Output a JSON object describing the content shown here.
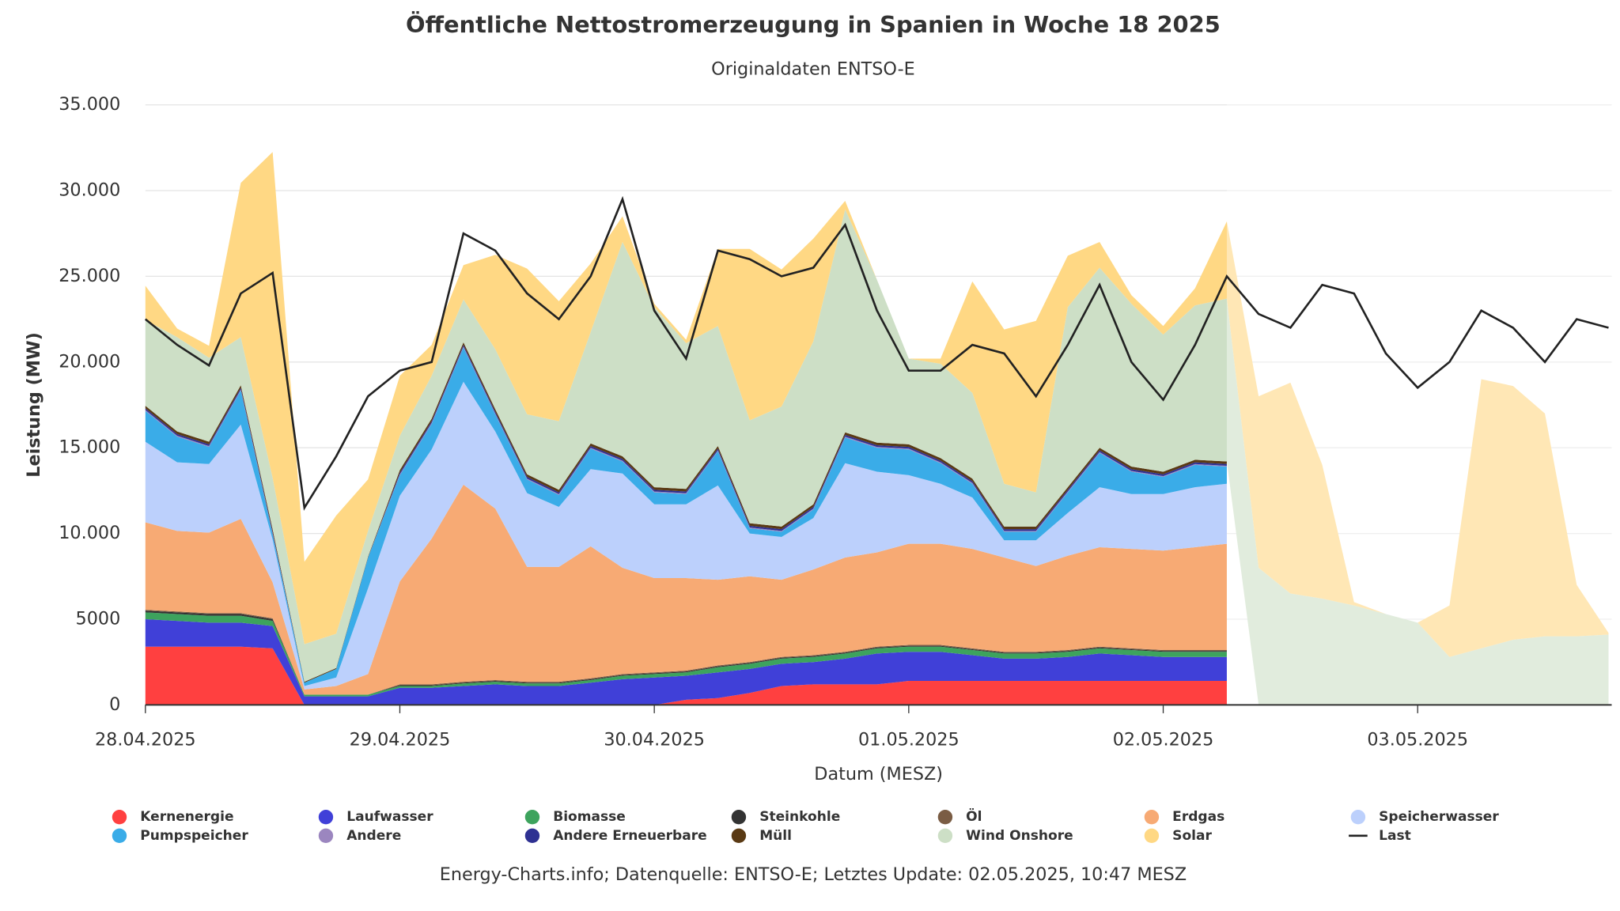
{
  "chart_data": {
    "type": "area",
    "title": "Öffentliche Nettostromerzeugung in Spanien in Woche 18 2025",
    "subtitle": "Originaldaten ENTSO-E",
    "y_label": "Leistung (MW)",
    "x_label": "Datum (MESZ)",
    "caption": "Energy-Charts.info; Datenquelle: ENTSO-E; Letztes Update: 02.05.2025, 10:47 MESZ",
    "grid": true,
    "xlim": [
      0,
      138.3
    ],
    "xticks": [
      {
        "value": 0,
        "label": "28.04.2025"
      },
      {
        "value": 24,
        "label": "29.04.2025"
      },
      {
        "value": 48,
        "label": "30.04.2025"
      },
      {
        "value": 72,
        "label": "01.05.2025"
      },
      {
        "value": 96,
        "label": "02.05.2025"
      },
      {
        "value": 120,
        "label": "03.05.2025"
      }
    ],
    "ylim": [
      0,
      35000
    ],
    "yticks": [
      0,
      5000,
      {
        "value": 10000,
        "label": "10.000"
      },
      {
        "value": 15000,
        "label": "15.000"
      },
      {
        "value": 20000,
        "label": "20.000"
      },
      {
        "value": 25000,
        "label": "25.000"
      },
      {
        "value": 30000,
        "label": "30.000"
      },
      {
        "value": 35000,
        "label": "35.000"
      }
    ],
    "x": [
      0,
      3,
      6,
      9,
      12,
      15,
      18,
      21,
      24,
      27,
      30,
      33,
      36,
      39,
      42,
      45,
      48,
      51,
      54,
      57,
      60,
      63,
      66,
      69,
      72,
      75,
      78,
      81,
      84,
      87,
      90,
      93,
      96,
      99,
      102,
      105,
      108,
      111,
      114,
      117,
      120,
      123,
      126,
      129,
      132,
      135,
      138
    ],
    "series": [
      {
        "name": "Kernenergie",
        "color": "#ff4040",
        "values": [
          3400,
          3400,
          3400,
          3400,
          3300,
          0,
          0,
          0,
          0,
          0,
          0,
          0,
          0,
          0,
          0,
          0,
          0,
          300,
          400,
          700,
          1100,
          1200,
          1200,
          1200,
          1400,
          1400,
          1400,
          1400,
          1400,
          1400,
          1400,
          1400,
          1400,
          1400,
          1400,
          null,
          null,
          null,
          null,
          null,
          null,
          null,
          null,
          null,
          null,
          null,
          null
        ]
      },
      {
        "name": "Laufwasser",
        "color": "#4040d8",
        "values": [
          1600,
          1500,
          1400,
          1400,
          1300,
          500,
          500,
          500,
          1000,
          1000,
          1100,
          1200,
          1100,
          1100,
          1300,
          1500,
          1600,
          1400,
          1500,
          1400,
          1300,
          1300,
          1500,
          1800,
          1700,
          1700,
          1500,
          1300,
          1300,
          1400,
          1600,
          1500,
          1400,
          1400,
          1400,
          null,
          null,
          null,
          null,
          null,
          null,
          null,
          null,
          null,
          null,
          null,
          null
        ]
      },
      {
        "name": "Biomasse",
        "color": "#3da35d",
        "values": [
          400,
          400,
          400,
          400,
          300,
          100,
          100,
          100,
          100,
          100,
          150,
          150,
          150,
          150,
          150,
          200,
          200,
          200,
          300,
          300,
          300,
          300,
          300,
          300,
          300,
          300,
          300,
          300,
          300,
          300,
          300,
          300,
          300,
          300,
          300,
          null,
          null,
          null,
          null,
          null,
          null,
          null,
          null,
          null,
          null,
          null,
          null
        ]
      },
      {
        "name": "Steinkohle",
        "color": "#333333",
        "values": [
          100,
          100,
          100,
          100,
          100,
          0,
          0,
          0,
          50,
          50,
          50,
          50,
          50,
          50,
          50,
          50,
          50,
          50,
          50,
          50,
          50,
          50,
          50,
          50,
          50,
          50,
          50,
          50,
          50,
          50,
          50,
          50,
          50,
          50,
          50,
          null,
          null,
          null,
          null,
          null,
          null,
          null,
          null,
          null,
          null,
          null,
          null
        ]
      },
      {
        "name": "Öl",
        "color": "#7a5c44",
        "values": [
          50,
          50,
          50,
          50,
          50,
          0,
          0,
          0,
          50,
          50,
          50,
          50,
          50,
          50,
          50,
          50,
          50,
          50,
          50,
          50,
          50,
          50,
          50,
          50,
          50,
          50,
          50,
          50,
          50,
          50,
          50,
          50,
          50,
          50,
          50,
          null,
          null,
          null,
          null,
          null,
          null,
          null,
          null,
          null,
          null,
          null,
          null
        ]
      },
      {
        "name": "Erdgas",
        "color": "#f7aa74",
        "values": [
          5100,
          4700,
          4700,
          5500,
          2100,
          300,
          500,
          1200,
          6000,
          8500,
          11500,
          10000,
          6700,
          6700,
          7700,
          6200,
          5500,
          5400,
          5000,
          5000,
          4500,
          5000,
          5500,
          5500,
          5900,
          5900,
          5800,
          5500,
          5000,
          5500,
          5800,
          5800,
          5800,
          6000,
          6200,
          null,
          null,
          null,
          null,
          null,
          null,
          null,
          null,
          null,
          null,
          null,
          null
        ]
      },
      {
        "name": "Speicherwasser",
        "color": "#bcd0fc",
        "values": [
          4700,
          4000,
          4000,
          5500,
          2500,
          200,
          500,
          5000,
          5000,
          5200,
          6000,
          4500,
          4300,
          3500,
          4500,
          5500,
          4300,
          4300,
          5500,
          2500,
          2500,
          3000,
          5500,
          4700,
          4000,
          3500,
          3000,
          1000,
          1500,
          2500,
          3500,
          3200,
          3300,
          3500,
          3500,
          null,
          null,
          null,
          null,
          null,
          null,
          null,
          null,
          null,
          null,
          null,
          null
        ]
      },
      {
        "name": "Pumpspeicher",
        "color": "#3aace8",
        "values": [
          1800,
          1500,
          1000,
          2000,
          300,
          200,
          500,
          1800,
          1200,
          1500,
          2000,
          1000,
          800,
          700,
          1200,
          700,
          700,
          600,
          2000,
          300,
          300,
          500,
          1500,
          1400,
          1500,
          1200,
          800,
          500,
          500,
          1200,
          2000,
          1300,
          1000,
          1300,
          1000,
          null,
          null,
          null,
          null,
          null,
          null,
          null,
          null,
          null,
          null,
          null,
          null
        ]
      },
      {
        "name": "Andere",
        "color": "#9b86bf",
        "values": [
          50,
          50,
          50,
          50,
          50,
          0,
          0,
          0,
          50,
          50,
          50,
          50,
          50,
          50,
          50,
          50,
          50,
          50,
          50,
          50,
          50,
          50,
          50,
          50,
          50,
          50,
          50,
          50,
          50,
          50,
          50,
          50,
          50,
          50,
          50,
          null,
          null,
          null,
          null,
          null,
          null,
          null,
          null,
          null,
          null,
          null,
          null
        ]
      },
      {
        "name": "Andere Erneuerbare",
        "color": "#2e3192",
        "values": [
          100,
          100,
          100,
          100,
          100,
          0,
          0,
          0,
          100,
          100,
          100,
          100,
          100,
          100,
          100,
          100,
          100,
          100,
          100,
          100,
          100,
          100,
          100,
          100,
          100,
          100,
          100,
          100,
          100,
          100,
          100,
          100,
          100,
          100,
          100,
          null,
          null,
          null,
          null,
          null,
          null,
          null,
          null,
          null,
          null,
          null,
          null
        ]
      },
      {
        "name": "Müll",
        "color": "#5a3a14",
        "values": [
          150,
          150,
          150,
          150,
          150,
          50,
          50,
          50,
          150,
          150,
          150,
          150,
          150,
          150,
          150,
          150,
          150,
          150,
          150,
          150,
          150,
          150,
          150,
          150,
          150,
          150,
          150,
          150,
          150,
          150,
          150,
          150,
          150,
          150,
          150,
          null,
          null,
          null,
          null,
          null,
          null,
          null,
          null,
          null,
          null,
          null,
          null
        ]
      },
      {
        "name": "Wind Onshore",
        "color": "#cddfc6",
        "values": [
          5000,
          5500,
          4900,
          2800,
          3000,
          2200,
          2000,
          1500,
          2000,
          2500,
          2500,
          3500,
          3500,
          4000,
          6500,
          12500,
          10500,
          8500,
          7000,
          6000,
          7000,
          9500,
          13000,
          9500,
          5000,
          5500,
          5000,
          2500,
          2000,
          10500,
          10500,
          9500,
          8000,
          9000,
          9500,
          8000,
          6500,
          6200,
          5800,
          5300,
          4800,
          2800,
          3300,
          3800,
          4000,
          4000,
          4100
        ]
      },
      {
        "name": "Solar",
        "color": "#ffd884",
        "values": [
          2000,
          500,
          700,
          9000,
          19000,
          4800,
          6900,
          3000,
          3500,
          1800,
          2000,
          5500,
          8500,
          7000,
          4000,
          1500,
          200,
          200,
          4500,
          10000,
          8000,
          6000,
          500,
          0,
          0,
          300,
          6500,
          9000,
          10000,
          3000,
          1500,
          500,
          500,
          1000,
          4500,
          10000,
          12300,
          7800,
          200,
          0,
          0,
          3000,
          15700,
          14800,
          13000,
          3000,
          100
        ]
      },
      {
        "name": "Last",
        "type": "line",
        "color": "#222222",
        "values": [
          22500,
          21000,
          19800,
          24000,
          25200,
          11500,
          14500,
          18000,
          19500,
          20000,
          27500,
          26500,
          24000,
          22500,
          25000,
          29500,
          23000,
          20200,
          26500,
          26000,
          25000,
          25500,
          28000,
          23000,
          19500,
          19500,
          21000,
          20500,
          18000,
          21000,
          24500,
          20000,
          17800,
          21000,
          25000,
          22800,
          22000,
          24500,
          24000,
          20500,
          18500,
          20000,
          23000,
          22000,
          20000,
          22500,
          22000
        ]
      }
    ]
  }
}
